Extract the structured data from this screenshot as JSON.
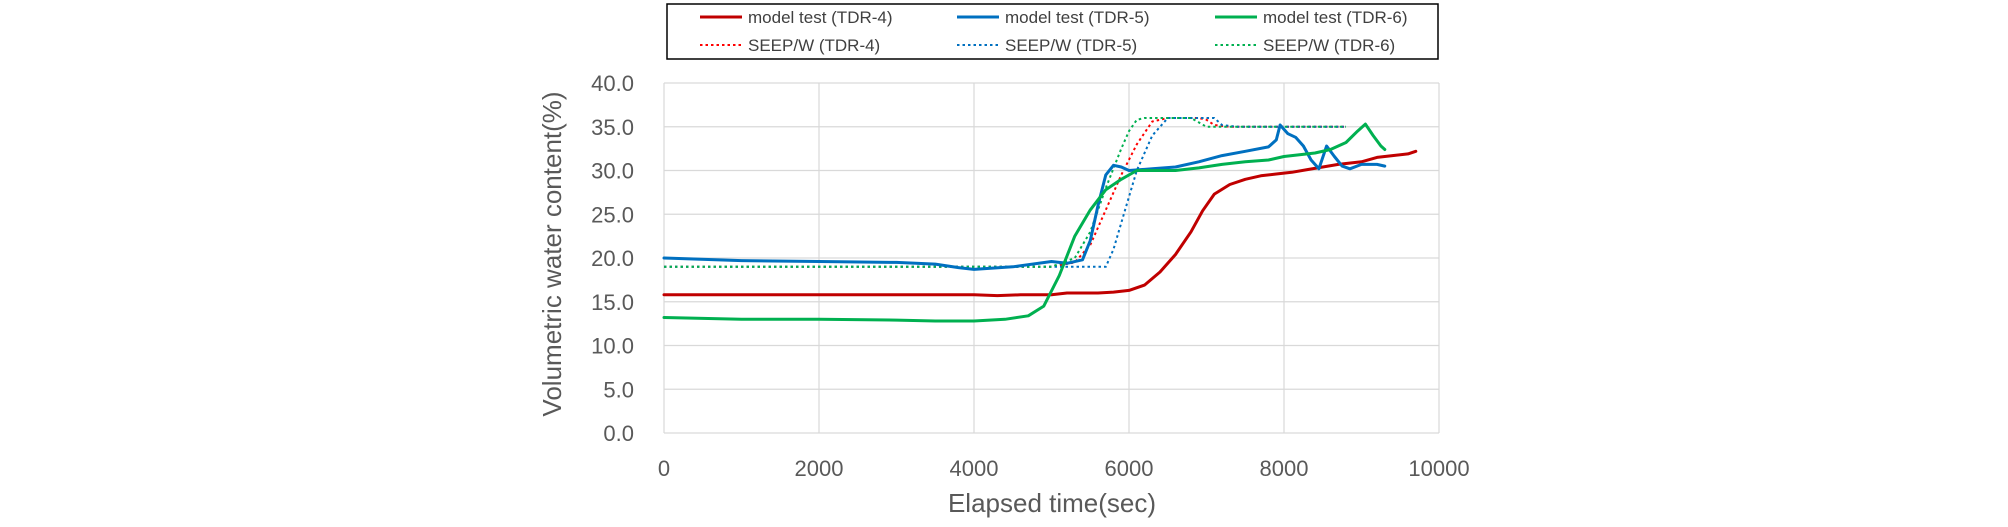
{
  "chart_data": {
    "type": "line",
    "xlabel": "Elapsed time(sec)",
    "ylabel": "Volumetric water content(%)",
    "xlim": [
      0,
      10000
    ],
    "ylim": [
      0,
      40
    ],
    "x_ticks": [
      "0",
      "2000",
      "4000",
      "6000",
      "8000",
      "10000"
    ],
    "y_ticks": [
      "0.0",
      "5.0",
      "10.0",
      "15.0",
      "20.0",
      "25.0",
      "30.0",
      "35.0",
      "40.0"
    ],
    "grid": true,
    "legend_position": "top",
    "series": [
      {
        "name": "model test (TDR-4)",
        "color": "#C00000",
        "style": "solid",
        "x": [
          0,
          1000,
          2000,
          3000,
          4000,
          4300,
          4600,
          5000,
          5200,
          5400,
          5600,
          5800,
          6000,
          6200,
          6400,
          6600,
          6800,
          6950,
          7100,
          7300,
          7500,
          7700,
          7900,
          8100,
          8300,
          8500,
          8700,
          9000,
          9200,
          9400,
          9600,
          9700
        ],
        "y": [
          15.8,
          15.8,
          15.8,
          15.8,
          15.8,
          15.7,
          15.8,
          15.8,
          16.0,
          16.0,
          16.0,
          16.1,
          16.3,
          16.9,
          18.4,
          20.4,
          23.0,
          25.4,
          27.3,
          28.4,
          29.0,
          29.4,
          29.6,
          29.8,
          30.1,
          30.4,
          30.7,
          31.0,
          31.5,
          31.7,
          31.9,
          32.2
        ]
      },
      {
        "name": "model test (TDR-5)",
        "color": "#0070C0",
        "style": "solid",
        "x": [
          0,
          1000,
          2000,
          3000,
          3500,
          3800,
          4000,
          4500,
          5000,
          5200,
          5400,
          5500,
          5600,
          5700,
          5800,
          5900,
          6000,
          6300,
          6600,
          6900,
          7200,
          7500,
          7800,
          7900,
          7950,
          8050,
          8150,
          8250,
          8350,
          8450,
          8550,
          8650,
          8750,
          8850,
          9000,
          9200,
          9300
        ],
        "y": [
          20.0,
          19.7,
          19.6,
          19.5,
          19.3,
          18.9,
          18.7,
          19.0,
          19.6,
          19.4,
          19.8,
          22.0,
          26.0,
          29.5,
          30.6,
          30.4,
          30.0,
          30.2,
          30.4,
          31.0,
          31.7,
          32.2,
          32.7,
          33.5,
          35.2,
          34.2,
          33.8,
          32.8,
          31.2,
          30.2,
          32.8,
          31.6,
          30.5,
          30.2,
          30.7,
          30.7,
          30.5
        ]
      },
      {
        "name": "model test (TDR-6)",
        "color": "#00B050",
        "style": "solid",
        "x": [
          0,
          1000,
          2000,
          3000,
          3500,
          4000,
          4400,
          4700,
          4900,
          5100,
          5300,
          5500,
          5700,
          5900,
          6100,
          6300,
          6600,
          6900,
          7200,
          7500,
          7800,
          8000,
          8200,
          8400,
          8600,
          8800,
          8950,
          9050,
          9150,
          9250,
          9300
        ],
        "y": [
          13.2,
          13.0,
          13.0,
          12.9,
          12.8,
          12.8,
          13.0,
          13.4,
          14.5,
          18.0,
          22.5,
          25.5,
          27.8,
          29.0,
          30.0,
          30.0,
          30.0,
          30.3,
          30.7,
          31.0,
          31.2,
          31.6,
          31.8,
          32.0,
          32.4,
          33.2,
          34.5,
          35.3,
          34.0,
          32.8,
          32.4
        ]
      },
      {
        "name": "SEEP/W (TDR-4)",
        "color": "#FF0000",
        "style": "dotted",
        "x": [
          0,
          4000,
          5000,
          5300,
          5500,
          5700,
          5900,
          6100,
          6300,
          6500,
          6700,
          6900,
          7000,
          7100,
          7300,
          8000,
          8800
        ],
        "y": [
          19.0,
          19.0,
          19.0,
          19.5,
          21.5,
          25.5,
          29.5,
          33.0,
          35.6,
          36.0,
          36.0,
          36.0,
          35.8,
          35.2,
          35.0,
          35.0,
          35.0
        ]
      },
      {
        "name": "SEEP/W (TDR-5)",
        "color": "#0070C0",
        "style": "dotted",
        "x": [
          0,
          4000,
          5000,
          5500,
          5700,
          5800,
          5950,
          6100,
          6300,
          6500,
          6700,
          6900,
          7100,
          7200,
          7400,
          8000,
          8800
        ],
        "y": [
          19.0,
          19.0,
          19.0,
          19.0,
          19.0,
          21.0,
          25.5,
          30.0,
          34.0,
          36.0,
          36.0,
          36.0,
          36.0,
          35.2,
          35.0,
          35.0,
          35.0
        ]
      },
      {
        "name": "SEEP/W (TDR-6)",
        "color": "#00B050",
        "style": "dotted",
        "x": [
          0,
          4000,
          5000,
          5300,
          5500,
          5700,
          5900,
          6000,
          6100,
          6200,
          6400,
          6600,
          6800,
          6900,
          7000,
          8000,
          8800
        ],
        "y": [
          19.0,
          19.0,
          19.0,
          20.0,
          23.0,
          28.0,
          32.5,
          34.5,
          35.8,
          36.0,
          36.0,
          36.0,
          36.0,
          35.5,
          35.0,
          35.0,
          35.0
        ]
      }
    ]
  }
}
